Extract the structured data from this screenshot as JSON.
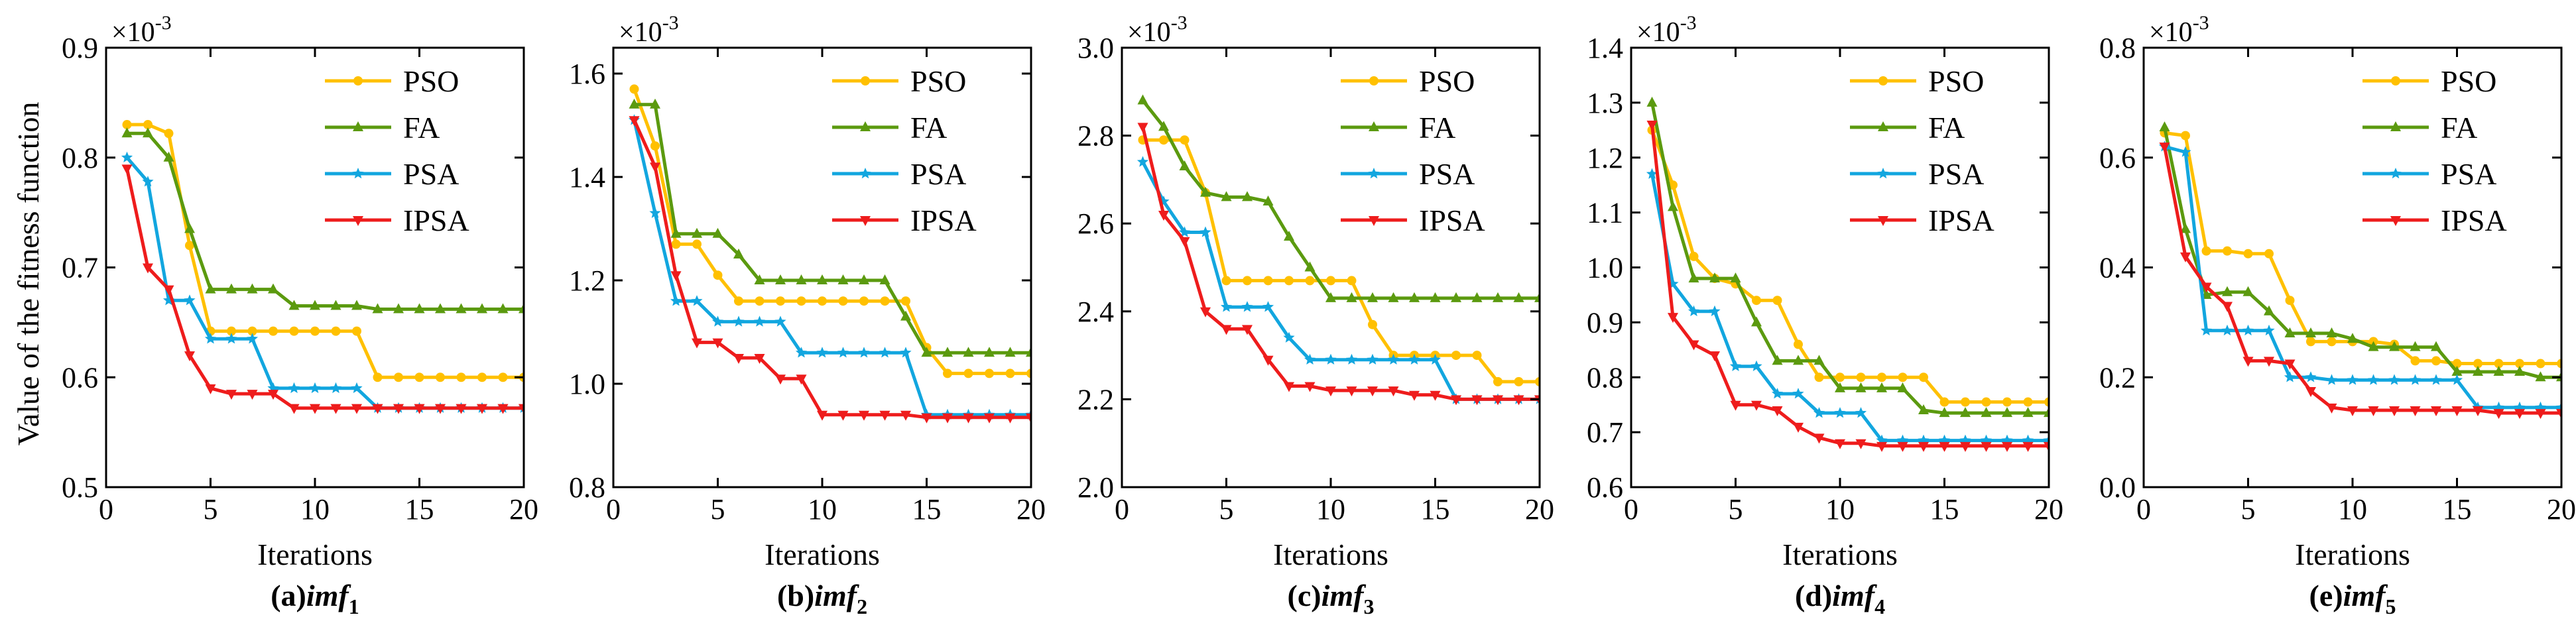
{
  "shared": {
    "ylabel": "Value of the fitness function",
    "xlabel": "Iterations",
    "exponent_label": "×10",
    "exponent_power": "-3",
    "legend": [
      "PSO",
      "FA",
      "PSA",
      "IPSA"
    ],
    "colors": {
      "PSO": "#FFC000",
      "FA": "#5B9A0F",
      "PSA": "#12A6DF",
      "IPSA": "#EE1C1C"
    },
    "xticks": [
      0,
      5,
      10,
      15,
      20
    ]
  },
  "chart_data": [
    {
      "type": "line",
      "caption_prefix": "(a)",
      "caption_var": "imf",
      "caption_sub": "1",
      "xlim": [
        0,
        20
      ],
      "ylim": [
        0.5,
        0.9
      ],
      "yticks": [
        0.5,
        0.6,
        0.7,
        0.8,
        0.9
      ],
      "ytick_labels": [
        "0.5",
        "0.6",
        "0.7",
        "0.8",
        "0.9"
      ],
      "x": [
        1,
        2,
        3,
        4,
        5,
        6,
        7,
        8,
        9,
        10,
        11,
        12,
        13,
        14,
        15,
        16,
        17,
        18,
        19,
        20
      ],
      "series": [
        {
          "name": "PSO",
          "marker": "circle",
          "values": [
            0.83,
            0.83,
            0.822,
            0.72,
            0.642,
            0.642,
            0.642,
            0.642,
            0.642,
            0.642,
            0.642,
            0.642,
            0.6,
            0.6,
            0.6,
            0.6,
            0.6,
            0.6,
            0.6,
            0.6
          ]
        },
        {
          "name": "FA",
          "marker": "triangle",
          "values": [
            0.822,
            0.822,
            0.8,
            0.735,
            0.68,
            0.68,
            0.68,
            0.68,
            0.665,
            0.665,
            0.665,
            0.665,
            0.662,
            0.662,
            0.662,
            0.662,
            0.662,
            0.662,
            0.662,
            0.662
          ]
        },
        {
          "name": "PSA",
          "marker": "star",
          "values": [
            0.8,
            0.778,
            0.67,
            0.67,
            0.635,
            0.635,
            0.635,
            0.59,
            0.59,
            0.59,
            0.59,
            0.59,
            0.572,
            0.572,
            0.572,
            0.572,
            0.572,
            0.572,
            0.572,
            0.572
          ]
        },
        {
          "name": "IPSA",
          "marker": "tri-down",
          "values": [
            0.79,
            0.7,
            0.68,
            0.62,
            0.59,
            0.585,
            0.585,
            0.585,
            0.572,
            0.572,
            0.572,
            0.572,
            0.572,
            0.572,
            0.572,
            0.572,
            0.572,
            0.572,
            0.572,
            0.572
          ]
        }
      ]
    },
    {
      "type": "line",
      "caption_prefix": "(b)",
      "caption_var": "imf",
      "caption_sub": "2",
      "xlim": [
        0,
        20
      ],
      "ylim": [
        0.8,
        1.65
      ],
      "yticks": [
        0.8,
        1.0,
        1.2,
        1.4,
        1.6
      ],
      "ytick_labels": [
        "0.8",
        "1.0",
        "1.2",
        "1.4",
        "1.6"
      ],
      "x": [
        1,
        2,
        3,
        4,
        5,
        6,
        7,
        8,
        9,
        10,
        11,
        12,
        13,
        14,
        15,
        16,
        17,
        18,
        19,
        20
      ],
      "series": [
        {
          "name": "PSO",
          "marker": "circle",
          "values": [
            1.57,
            1.46,
            1.27,
            1.27,
            1.21,
            1.16,
            1.16,
            1.16,
            1.16,
            1.16,
            1.16,
            1.16,
            1.16,
            1.16,
            1.07,
            1.02,
            1.02,
            1.02,
            1.02,
            1.02
          ]
        },
        {
          "name": "FA",
          "marker": "triangle",
          "values": [
            1.54,
            1.54,
            1.29,
            1.29,
            1.29,
            1.25,
            1.2,
            1.2,
            1.2,
            1.2,
            1.2,
            1.2,
            1.2,
            1.13,
            1.06,
            1.06,
            1.06,
            1.06,
            1.06,
            1.06
          ]
        },
        {
          "name": "PSA",
          "marker": "star",
          "values": [
            1.51,
            1.33,
            1.16,
            1.16,
            1.12,
            1.12,
            1.12,
            1.12,
            1.06,
            1.06,
            1.06,
            1.06,
            1.06,
            1.06,
            0.94,
            0.94,
            0.94,
            0.94,
            0.94,
            0.94
          ]
        },
        {
          "name": "IPSA",
          "marker": "tri-down",
          "values": [
            1.51,
            1.42,
            1.21,
            1.08,
            1.08,
            1.05,
            1.05,
            1.01,
            1.01,
            0.94,
            0.94,
            0.94,
            0.94,
            0.94,
            0.935,
            0.935,
            0.935,
            0.935,
            0.935,
            0.935
          ]
        }
      ]
    },
    {
      "type": "line",
      "caption_prefix": "(c)",
      "caption_var": "imf",
      "caption_sub": "3",
      "xlim": [
        0,
        20
      ],
      "ylim": [
        2.0,
        3.0
      ],
      "yticks": [
        2.0,
        2.2,
        2.4,
        2.6,
        2.8,
        3.0
      ],
      "ytick_labels": [
        "2.0",
        "2.2",
        "2.4",
        "2.6",
        "2.8",
        "3.0"
      ],
      "x": [
        1,
        2,
        3,
        4,
        5,
        6,
        7,
        8,
        9,
        10,
        11,
        12,
        13,
        14,
        15,
        16,
        17,
        18,
        19,
        20
      ],
      "series": [
        {
          "name": "PSO",
          "marker": "circle",
          "values": [
            2.79,
            2.79,
            2.79,
            2.67,
            2.47,
            2.47,
            2.47,
            2.47,
            2.47,
            2.47,
            2.47,
            2.37,
            2.3,
            2.3,
            2.3,
            2.3,
            2.3,
            2.24,
            2.24,
            2.24
          ]
        },
        {
          "name": "FA",
          "marker": "triangle",
          "values": [
            2.88,
            2.82,
            2.73,
            2.67,
            2.66,
            2.66,
            2.65,
            2.57,
            2.5,
            2.43,
            2.43,
            2.43,
            2.43,
            2.43,
            2.43,
            2.43,
            2.43,
            2.43,
            2.43,
            2.43
          ]
        },
        {
          "name": "PSA",
          "marker": "star",
          "values": [
            2.74,
            2.65,
            2.58,
            2.58,
            2.41,
            2.41,
            2.41,
            2.34,
            2.29,
            2.29,
            2.29,
            2.29,
            2.29,
            2.29,
            2.29,
            2.2,
            2.2,
            2.2,
            2.2,
            2.2
          ]
        },
        {
          "name": "IPSA",
          "marker": "tri-down",
          "values": [
            2.82,
            2.62,
            2.56,
            2.4,
            2.36,
            2.36,
            2.29,
            2.23,
            2.23,
            2.22,
            2.22,
            2.22,
            2.22,
            2.21,
            2.21,
            2.2,
            2.2,
            2.2,
            2.2,
            2.2
          ]
        }
      ]
    },
    {
      "type": "line",
      "caption_prefix": "(d)",
      "caption_var": "imf",
      "caption_sub": "4",
      "xlim": [
        0,
        20
      ],
      "ylim": [
        0.6,
        1.4
      ],
      "yticks": [
        0.6,
        0.7,
        0.8,
        0.9,
        1.0,
        1.1,
        1.2,
        1.3,
        1.4
      ],
      "ytick_labels": [
        "0.6",
        "0.7",
        "0.8",
        "0.9",
        "1.0",
        "1.1",
        "1.2",
        "1.3",
        "1.4"
      ],
      "x": [
        1,
        2,
        3,
        4,
        5,
        6,
        7,
        8,
        9,
        10,
        11,
        12,
        13,
        14,
        15,
        16,
        17,
        18,
        19,
        20
      ],
      "series": [
        {
          "name": "PSO",
          "marker": "circle",
          "values": [
            1.25,
            1.15,
            1.02,
            0.98,
            0.97,
            0.94,
            0.94,
            0.86,
            0.8,
            0.8,
            0.8,
            0.8,
            0.8,
            0.8,
            0.755,
            0.755,
            0.755,
            0.755,
            0.755,
            0.755
          ]
        },
        {
          "name": "FA",
          "marker": "triangle",
          "values": [
            1.3,
            1.11,
            0.98,
            0.98,
            0.98,
            0.9,
            0.83,
            0.83,
            0.83,
            0.78,
            0.78,
            0.78,
            0.78,
            0.74,
            0.735,
            0.735,
            0.735,
            0.735,
            0.735,
            0.735
          ]
        },
        {
          "name": "PSA",
          "marker": "star",
          "values": [
            1.17,
            0.97,
            0.92,
            0.92,
            0.82,
            0.82,
            0.77,
            0.77,
            0.735,
            0.735,
            0.735,
            0.685,
            0.685,
            0.685,
            0.685,
            0.685,
            0.685,
            0.685,
            0.685,
            0.685
          ]
        },
        {
          "name": "IPSA",
          "marker": "tri-down",
          "values": [
            1.26,
            0.91,
            0.86,
            0.84,
            0.75,
            0.75,
            0.74,
            0.71,
            0.69,
            0.68,
            0.68,
            0.675,
            0.675,
            0.675,
            0.675,
            0.675,
            0.675,
            0.675,
            0.675,
            0.675
          ]
        }
      ]
    },
    {
      "type": "line",
      "caption_prefix": "(e)",
      "caption_var": "imf",
      "caption_sub": "5",
      "xlim": [
        0,
        20
      ],
      "ylim": [
        0.0,
        0.8
      ],
      "yticks": [
        0.0,
        0.2,
        0.4,
        0.6,
        0.8
      ],
      "ytick_labels": [
        "0.0",
        "0.2",
        "0.4",
        "0.6",
        "0.8"
      ],
      "x": [
        1,
        2,
        3,
        4,
        5,
        6,
        7,
        8,
        9,
        10,
        11,
        12,
        13,
        14,
        15,
        16,
        17,
        18,
        19,
        20
      ],
      "series": [
        {
          "name": "PSO",
          "marker": "circle",
          "values": [
            0.645,
            0.64,
            0.43,
            0.43,
            0.425,
            0.425,
            0.34,
            0.265,
            0.265,
            0.265,
            0.265,
            0.26,
            0.23,
            0.23,
            0.225,
            0.225,
            0.225,
            0.225,
            0.225,
            0.225
          ]
        },
        {
          "name": "FA",
          "marker": "triangle",
          "values": [
            0.655,
            0.47,
            0.35,
            0.355,
            0.355,
            0.32,
            0.28,
            0.28,
            0.28,
            0.27,
            0.255,
            0.255,
            0.255,
            0.255,
            0.21,
            0.21,
            0.21,
            0.21,
            0.2,
            0.2
          ]
        },
        {
          "name": "PSA",
          "marker": "star",
          "values": [
            0.62,
            0.61,
            0.285,
            0.285,
            0.285,
            0.285,
            0.2,
            0.2,
            0.195,
            0.195,
            0.195,
            0.195,
            0.195,
            0.195,
            0.195,
            0.145,
            0.145,
            0.145,
            0.145,
            0.145
          ]
        },
        {
          "name": "IPSA",
          "marker": "tri-down",
          "values": [
            0.62,
            0.42,
            0.365,
            0.33,
            0.23,
            0.23,
            0.225,
            0.175,
            0.145,
            0.14,
            0.14,
            0.14,
            0.14,
            0.14,
            0.14,
            0.14,
            0.135,
            0.135,
            0.135,
            0.135
          ]
        }
      ]
    }
  ]
}
